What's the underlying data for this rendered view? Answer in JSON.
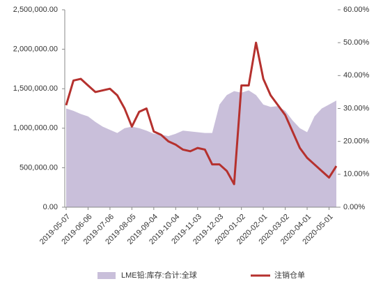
{
  "chart_data": {
    "type": "combo",
    "categories": [
      "2019-05-07",
      null,
      null,
      "2019-06-06",
      null,
      null,
      "2019-07-06",
      null,
      null,
      "2019-08-05",
      null,
      null,
      "2019-09-04",
      null,
      null,
      "2019-10-04",
      null,
      null,
      "2019-11-03",
      null,
      null,
      "2019-12-03",
      null,
      null,
      "2020-01-02",
      null,
      null,
      "2020-02-01",
      null,
      null,
      "2020-03-02",
      null,
      null,
      "2020-04-01",
      null,
      null,
      "2020-05-01",
      null
    ],
    "series": [
      {
        "name": "LME铅:库存:合计:全球",
        "type": "area",
        "color": "#c9bfda",
        "values": [
          1250000,
          1220000,
          1180000,
          1150000,
          1080000,
          1020000,
          980000,
          940000,
          1000000,
          1020000,
          1000000,
          970000,
          930000,
          920000,
          900000,
          930000,
          970000,
          960000,
          950000,
          940000,
          940000,
          1300000,
          1420000,
          1470000,
          1450000,
          1480000,
          1420000,
          1300000,
          1270000,
          1280000,
          1220000,
          1100000,
          1000000,
          950000,
          1150000,
          1250000,
          1300000,
          1350000
        ]
      },
      {
        "name": "注销仓单",
        "type": "line",
        "axis": "y2",
        "color": "#b5312e",
        "values": [
          31,
          38.5,
          39,
          37,
          35,
          35.5,
          36,
          34,
          30,
          24.5,
          29,
          30,
          23,
          22,
          20,
          19,
          17.5,
          17,
          18,
          17.5,
          13,
          13,
          11,
          7,
          37,
          37,
          50,
          39,
          34,
          31,
          28,
          23,
          18,
          15,
          13,
          11,
          9,
          12.5
        ]
      }
    ],
    "ylim": [
      0,
      2500000
    ],
    "yticks": [
      {
        "value": 0,
        "label": "0.00"
      },
      {
        "value": 500000,
        "label": "500,000.00"
      },
      {
        "value": 1000000,
        "label": "1,000,000.00"
      },
      {
        "value": 1500000,
        "label": "1,500,000.00"
      },
      {
        "value": 2000000,
        "label": "2,000,000.00"
      },
      {
        "value": 2500000,
        "label": "2,500,000.00"
      }
    ],
    "y2lim": [
      0,
      60
    ],
    "y2ticks": [
      {
        "value": 0,
        "label": "0.00%"
      },
      {
        "value": 10,
        "label": "10.00%"
      },
      {
        "value": 20,
        "label": "20.00%"
      },
      {
        "value": 30,
        "label": "30.00%"
      },
      {
        "value": 40,
        "label": "40.00%"
      },
      {
        "value": 50,
        "label": "50.00%"
      },
      {
        "value": 60,
        "label": "60.00%"
      }
    ],
    "grid": false
  }
}
